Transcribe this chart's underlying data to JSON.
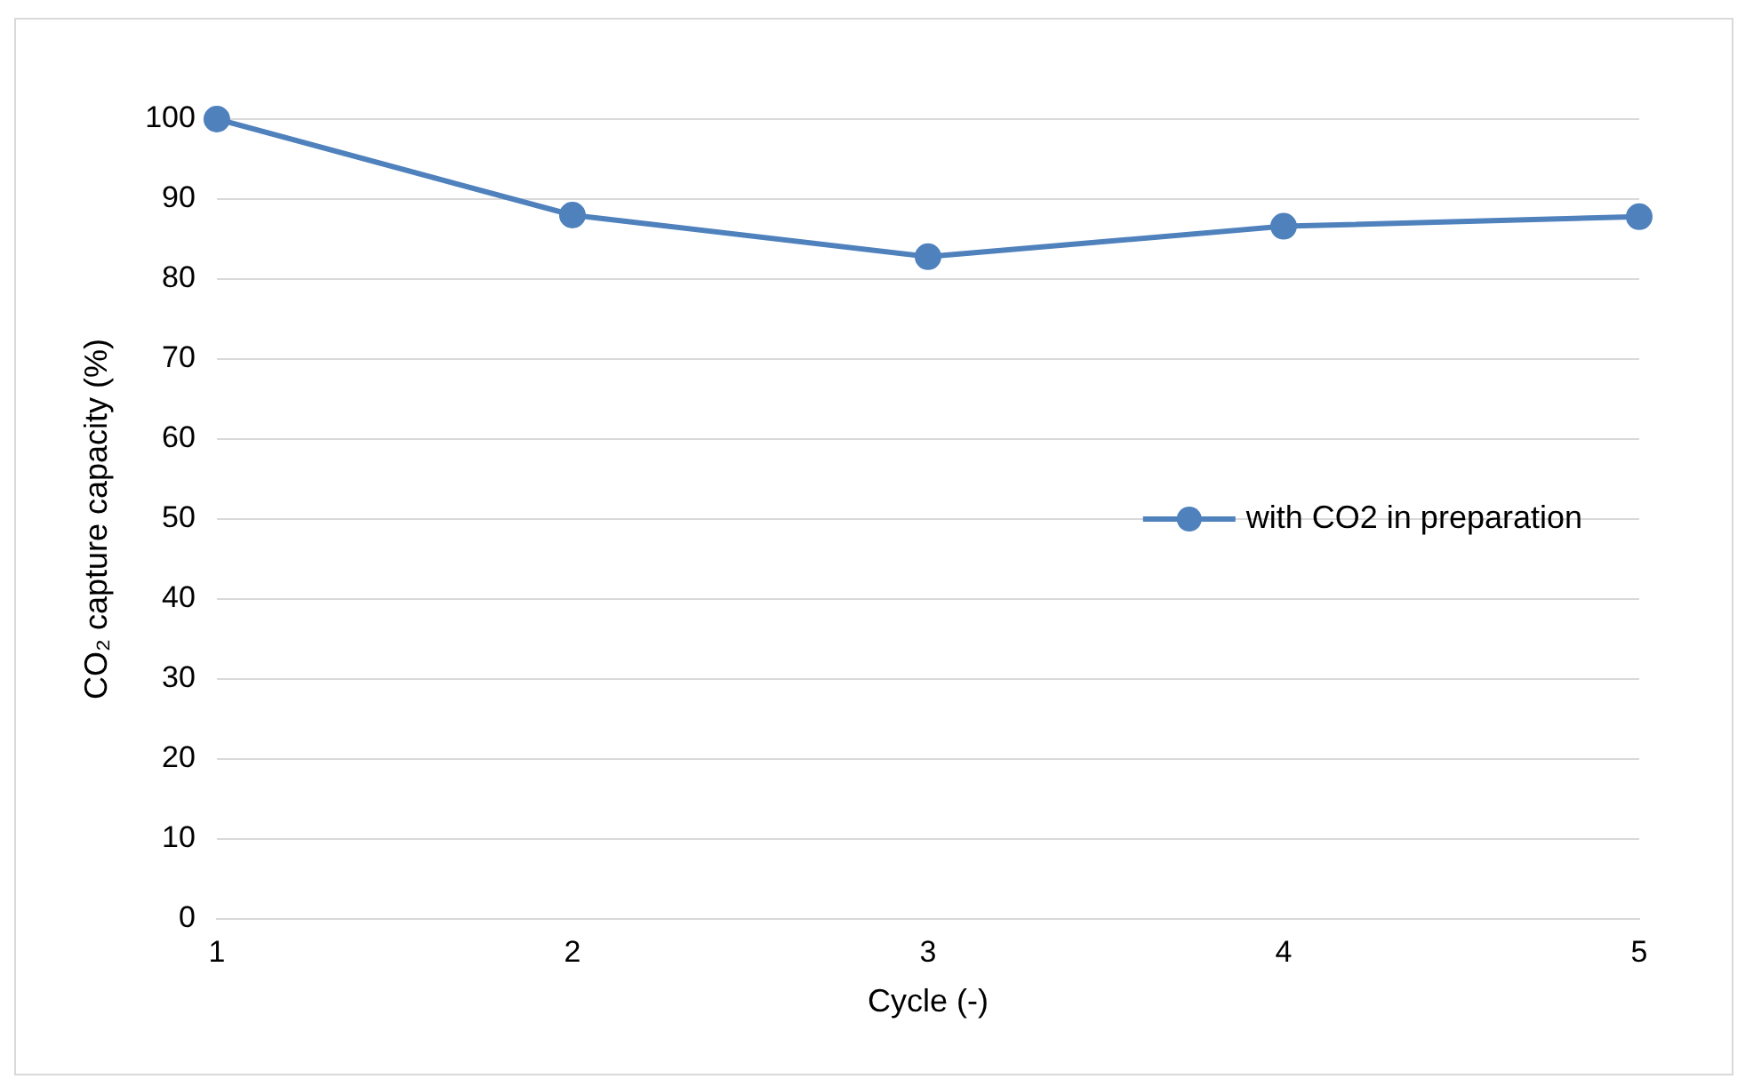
{
  "chart_data": {
    "type": "line",
    "xlabel": "Cycle (-)",
    "ylabel": "CO₂ capture capacity (%)",
    "categories": [
      "1",
      "2",
      "3",
      "4",
      "5"
    ],
    "series": [
      {
        "name": "with CO2 in preparation",
        "color": "#4f81bd",
        "values": [
          100,
          88,
          82.8,
          86.6,
          87.8
        ]
      }
    ],
    "ylim": [
      0,
      100
    ],
    "yticks": [
      0,
      10,
      20,
      30,
      40,
      50,
      60,
      70,
      80,
      90,
      100
    ],
    "grid": "y",
    "legend": "right",
    "marker": "circle",
    "line_style": "solid"
  }
}
